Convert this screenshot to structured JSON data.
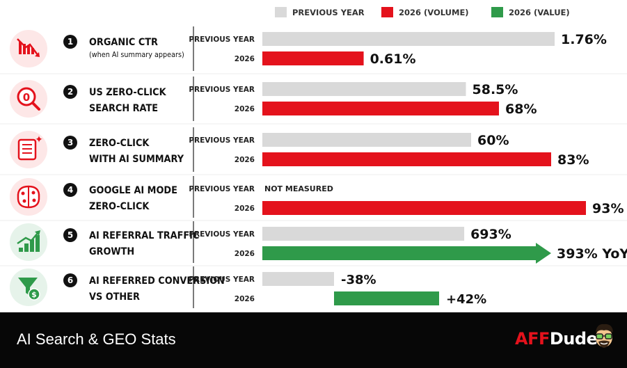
{
  "chart_data": {
    "type": "bar",
    "orientation": "horizontal",
    "legend": [
      {
        "label": "PREVIOUS YEAR",
        "color": "#d9d9d9"
      },
      {
        "label": "2026 (VOLUME)",
        "color": "#e4121c"
      },
      {
        "label": "2026 (VALUE)",
        "color": "#2f9a4a"
      }
    ],
    "series_labels": {
      "previous": "PREVIOUS YEAR",
      "current": "2026"
    },
    "rows": [
      {
        "num": "1",
        "icon": "down-trend-chart-icon",
        "title1": "ORGANIC CTR",
        "title2": "(when AI summary appears)",
        "prev": {
          "value": 1.76,
          "label": "1.76%"
        },
        "curr": {
          "value": 0.61,
          "label": "0.61%",
          "kind": "volume"
        }
      },
      {
        "num": "2",
        "icon": "zero-magnifier-icon",
        "title1": "US ZERO-CLICK",
        "title2": "SEARCH RATE",
        "prev": {
          "value": 58.5,
          "label": "58.5%"
        },
        "curr": {
          "value": 68,
          "label": "68%",
          "kind": "volume"
        }
      },
      {
        "num": "3",
        "icon": "ai-document-sparkle-icon",
        "title1": "ZERO-CLICK",
        "title2": "WITH AI SUMMARY",
        "prev": {
          "value": 60,
          "label": "60%"
        },
        "curr": {
          "value": 83,
          "label": "83%",
          "kind": "volume"
        }
      },
      {
        "num": "4",
        "icon": "ai-brain-circuit-icon",
        "title1": "GOOGLE AI MODE",
        "title2": "ZERO-CLICK",
        "prev": {
          "value": null,
          "label": "NOT MEASURED"
        },
        "curr": {
          "value": 93,
          "label": "93%",
          "kind": "volume"
        }
      },
      {
        "num": "5",
        "icon": "growth-bar-chart-icon",
        "title1": "AI REFERRAL TRAFFIC",
        "title2": "GROWTH",
        "prev": {
          "value": 693,
          "label": "693%"
        },
        "curr": {
          "value": 393,
          "label": "393% YoY",
          "kind": "value",
          "arrow": true
        }
      },
      {
        "num": "6",
        "icon": "funnel-dollar-icon",
        "title1": "AI REFERRED CONVERSION",
        "title2": "VS OTHER",
        "prev": {
          "value": -38,
          "label": "-38%"
        },
        "curr": {
          "value": 42,
          "label": "+42%",
          "kind": "value"
        }
      }
    ]
  },
  "footer": {
    "title": "AI Search & GEO Stats",
    "brand_aff": "AFF",
    "brand_dude": "Dude"
  },
  "colors": {
    "previous": "#d9d9d9",
    "volume": "#e4121c",
    "value": "#2f9a4a",
    "text": "#111111",
    "footer_bg": "#070707"
  }
}
